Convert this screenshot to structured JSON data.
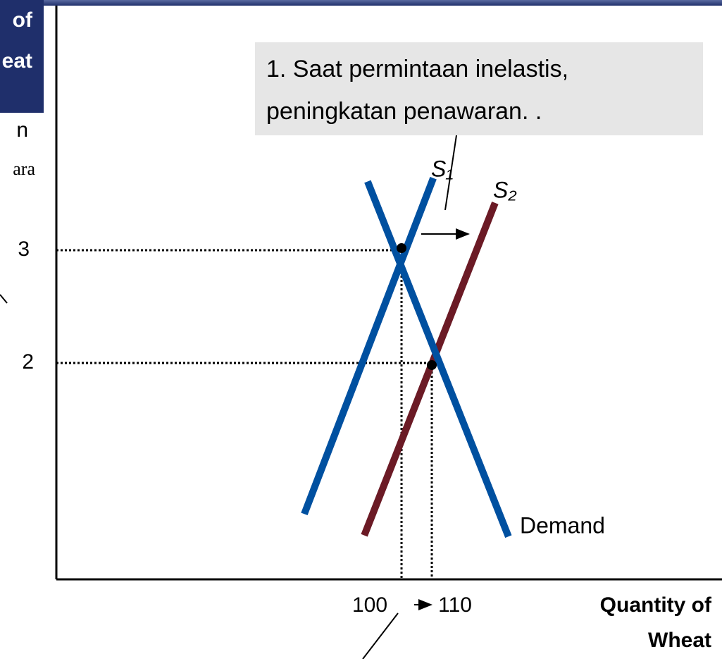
{
  "chart_data": {
    "type": "line",
    "title_fragments": [
      "of",
      "eat"
    ],
    "side_fragments": [
      "n",
      "ara"
    ],
    "annotation": [
      "1. Saat permintaan inelastis,",
      "peningkatan penawaran. ."
    ],
    "xlabel": [
      "Quantity of",
      "Wheat"
    ],
    "xlim": [
      -13.95,
      205.8
    ],
    "ylim": [
      0.08,
      5.22
    ],
    "xticks": [
      100,
      110
    ],
    "yticks": [
      3,
      2
    ],
    "series": [
      {
        "name": "S₁",
        "color": "#0050a0",
        "x": [
          67.9,
          110.5
        ],
        "values": [
          0.66,
          3.64
        ]
      },
      {
        "name": "S₂",
        "color": "#6b1a25",
        "x": [
          87.7,
          130.9
        ],
        "values": [
          0.47,
          3.42
        ]
      },
      {
        "name": "Demand",
        "color": "#0050a0",
        "x": [
          88.8,
          135.3
        ],
        "values": [
          3.61,
          0.46
        ]
      }
    ],
    "points": [
      {
        "x": 100,
        "y": 3
      },
      {
        "x": 110,
        "y": 2
      }
    ]
  }
}
